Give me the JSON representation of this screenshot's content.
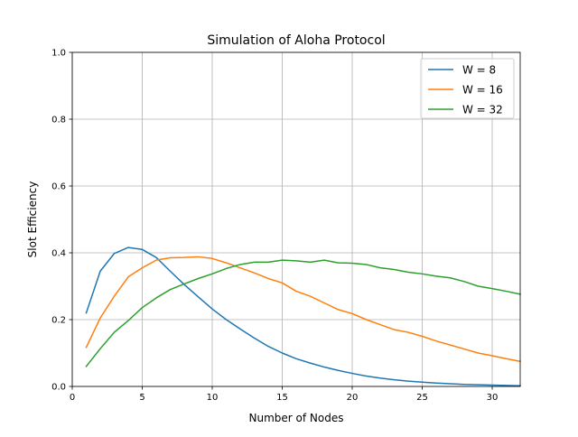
{
  "chart_data": {
    "type": "line",
    "title": "Simulation of Aloha Protocol",
    "xlabel": "Number of Nodes",
    "ylabel": "Slot Efficiency",
    "xlim": [
      0,
      32
    ],
    "ylim": [
      0,
      1.0
    ],
    "xticks": [
      0,
      5,
      10,
      15,
      20,
      25,
      30
    ],
    "yticks": [
      0.0,
      0.2,
      0.4,
      0.6,
      0.8,
      1.0
    ],
    "xtick_labels": [
      "0",
      "5",
      "10",
      "15",
      "20",
      "25",
      "30"
    ],
    "ytick_labels": [
      "0.0",
      "0.2",
      "0.4",
      "0.6",
      "0.8",
      "1.0"
    ],
    "grid": true,
    "legend_position": "upper-right",
    "x": [
      1,
      2,
      3,
      4,
      5,
      6,
      7,
      8,
      9,
      10,
      11,
      12,
      13,
      14,
      15,
      16,
      17,
      18,
      19,
      20,
      21,
      22,
      23,
      24,
      25,
      26,
      27,
      28,
      29,
      30,
      31,
      32
    ],
    "series": [
      {
        "name": "W = 8",
        "color": "#1f77b4",
        "values": [
          0.22,
          0.345,
          0.398,
          0.416,
          0.41,
          0.386,
          0.345,
          0.305,
          0.268,
          0.232,
          0.2,
          0.172,
          0.145,
          0.12,
          0.1,
          0.083,
          0.07,
          0.058,
          0.048,
          0.039,
          0.031,
          0.025,
          0.02,
          0.016,
          0.013,
          0.01,
          0.008,
          0.006,
          0.005,
          0.004,
          0.003,
          0.002
        ]
      },
      {
        "name": "W = 16",
        "color": "#ff7f0e",
        "values": [
          0.117,
          0.205,
          0.27,
          0.328,
          0.355,
          0.378,
          0.385,
          0.386,
          0.388,
          0.383,
          0.37,
          0.355,
          0.34,
          0.323,
          0.31,
          0.285,
          0.27,
          0.25,
          0.23,
          0.218,
          0.2,
          0.185,
          0.17,
          0.162,
          0.15,
          0.136,
          0.124,
          0.112,
          0.1,
          0.092,
          0.083,
          0.075
        ]
      },
      {
        "name": "W = 32",
        "color": "#2ca02c",
        "values": [
          0.06,
          0.113,
          0.162,
          0.197,
          0.236,
          0.265,
          0.29,
          0.307,
          0.323,
          0.337,
          0.353,
          0.365,
          0.372,
          0.372,
          0.378,
          0.376,
          0.372,
          0.378,
          0.37,
          0.369,
          0.365,
          0.355,
          0.35,
          0.342,
          0.337,
          0.33,
          0.325,
          0.314,
          0.3,
          0.293,
          0.285,
          0.276
        ]
      }
    ]
  }
}
